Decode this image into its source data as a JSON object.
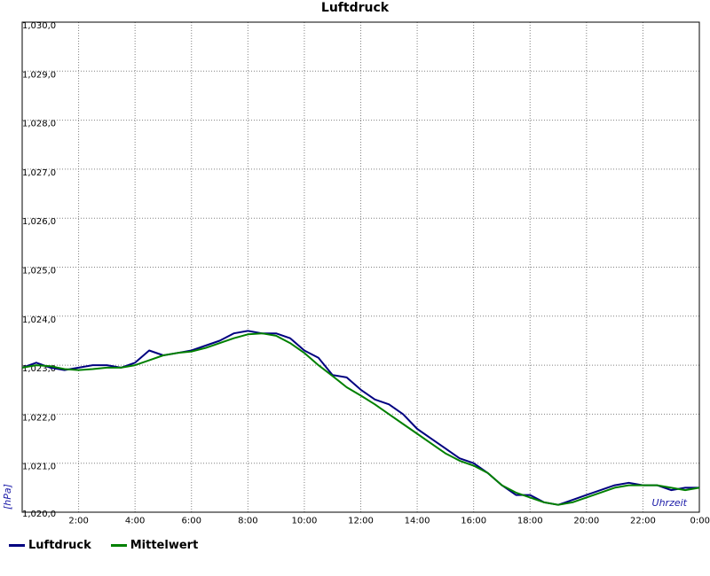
{
  "chart_data": {
    "type": "line",
    "title": "Luftdruck",
    "xlabel": "Uhrzeit",
    "ylabel": "[hPa]",
    "xlim": [
      0,
      24
    ],
    "ylim": [
      1020.0,
      1030.0
    ],
    "grid": true,
    "legend_position": "bottom-left",
    "x_tick_labels": [
      "2:00",
      "4:00",
      "6:00",
      "8:00",
      "10:00",
      "12:00",
      "14:00",
      "16:00",
      "18:00",
      "20:00",
      "22:00",
      "0:00"
    ],
    "y_tick_labels": [
      "1,020,0",
      "1,021,0",
      "1,022,0",
      "1,023,0",
      "1,024,0",
      "1,025,0",
      "1,026,0",
      "1,027,0",
      "1,028,0",
      "1,029,0",
      "1,030,0"
    ],
    "series": [
      {
        "name": "Luftdruck",
        "color": "#000080",
        "x": [
          0,
          0.5,
          1,
          1.5,
          2,
          2.5,
          3,
          3.5,
          4,
          4.5,
          5,
          5.5,
          6,
          6.5,
          7,
          7.5,
          8,
          8.5,
          9,
          9.5,
          10,
          10.5,
          11,
          11.5,
          12,
          12.5,
          13,
          13.5,
          14,
          14.5,
          15,
          15.5,
          16,
          16.5,
          17,
          17.5,
          18,
          18.5,
          19,
          19.5,
          20,
          20.5,
          21,
          21.5,
          22,
          22.5,
          23,
          23.5,
          24
        ],
        "y": [
          1022.95,
          1023.05,
          1022.95,
          1022.9,
          1022.95,
          1023.0,
          1023.0,
          1022.95,
          1023.05,
          1023.3,
          1023.2,
          1023.25,
          1023.3,
          1023.4,
          1023.5,
          1023.65,
          1023.7,
          1023.65,
          1023.65,
          1023.55,
          1023.3,
          1023.15,
          1022.8,
          1022.75,
          1022.5,
          1022.3,
          1022.2,
          1022.0,
          1021.7,
          1021.5,
          1021.3,
          1021.1,
          1021.0,
          1020.8,
          1020.55,
          1020.35,
          1020.35,
          1020.2,
          1020.15,
          1020.25,
          1020.35,
          1020.45,
          1020.55,
          1020.6,
          1020.55,
          1020.55,
          1020.45,
          1020.5,
          1020.5
        ]
      },
      {
        "name": "Mittelwert",
        "color": "#008000",
        "x": [
          0,
          0.5,
          1,
          1.5,
          2,
          2.5,
          3,
          3.5,
          4,
          4.5,
          5,
          5.5,
          6,
          6.5,
          7,
          7.5,
          8,
          8.5,
          9,
          9.5,
          10,
          10.5,
          11,
          11.5,
          12,
          12.5,
          13,
          13.5,
          14,
          14.5,
          15,
          15.5,
          16,
          16.5,
          17,
          17.5,
          18,
          18.5,
          19,
          19.5,
          20,
          20.5,
          21,
          21.5,
          22,
          22.5,
          23,
          23.5,
          24
        ],
        "y": [
          1022.95,
          1023.0,
          1022.98,
          1022.92,
          1022.9,
          1022.92,
          1022.95,
          1022.95,
          1023.0,
          1023.1,
          1023.2,
          1023.25,
          1023.28,
          1023.35,
          1023.45,
          1023.55,
          1023.63,
          1023.65,
          1023.6,
          1023.45,
          1023.25,
          1023.0,
          1022.78,
          1022.55,
          1022.38,
          1022.2,
          1022.0,
          1021.8,
          1021.6,
          1021.4,
          1021.2,
          1021.05,
          1020.95,
          1020.8,
          1020.55,
          1020.4,
          1020.3,
          1020.2,
          1020.15,
          1020.2,
          1020.3,
          1020.4,
          1020.5,
          1020.55,
          1020.55,
          1020.55,
          1020.5,
          1020.45,
          1020.5
        ]
      }
    ]
  }
}
